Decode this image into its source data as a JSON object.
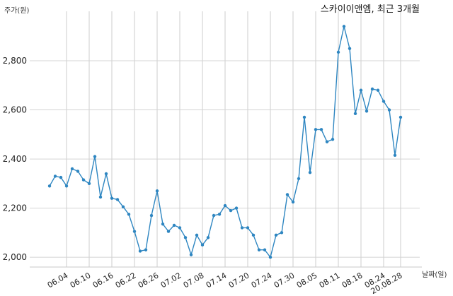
{
  "chart_data": {
    "type": "line",
    "title": "스카이이앤엠, 최근 3개월",
    "ylabel": "주가(원)",
    "xlabel": "날짜(일)",
    "ylim": [
      1960,
      2990
    ],
    "yticks": [
      2000,
      2200,
      2400,
      2600,
      2800
    ],
    "ytick_labels": [
      "2,000",
      "2,200",
      "2,400",
      "2,600",
      "2,800"
    ],
    "xticks": [
      {
        "index": 3,
        "label": "06.04"
      },
      {
        "index": 7,
        "label": "06.10"
      },
      {
        "index": 11,
        "label": "06.16"
      },
      {
        "index": 15,
        "label": "06.22"
      },
      {
        "index": 19,
        "label": "06.26"
      },
      {
        "index": 23,
        "label": "07.02"
      },
      {
        "index": 27,
        "label": "07.08"
      },
      {
        "index": 31,
        "label": "07.14"
      },
      {
        "index": 35,
        "label": "07.20"
      },
      {
        "index": 39,
        "label": "07.24"
      },
      {
        "index": 43,
        "label": "07.30"
      },
      {
        "index": 47,
        "label": "08.05"
      },
      {
        "index": 51,
        "label": "08.11"
      },
      {
        "index": 55,
        "label": "08.18"
      },
      {
        "index": 59,
        "label": "08.24"
      },
      {
        "index": 62,
        "label": "20.08.28"
      }
    ],
    "grid": true,
    "line_color": "#2e86c1",
    "series": [
      {
        "values": [
          2290,
          2330,
          2325,
          2290,
          2360,
          2350,
          2315,
          2300,
          2410,
          2245,
          2340,
          2240,
          2235,
          2205,
          2175,
          2105,
          2025,
          2030,
          2170,
          2270,
          2135,
          2105,
          2130,
          2120,
          2080,
          2010,
          2090,
          2050,
          2080,
          2170,
          2175,
          2210,
          2190,
          2200,
          2120,
          2120,
          2090,
          2030,
          2030,
          2000,
          2090,
          2100,
          2255,
          2225,
          2320,
          2570,
          2345,
          2520,
          2520,
          2470,
          2480,
          2835,
          2940,
          2850,
          2585,
          2680,
          2595,
          2685,
          2680,
          2635,
          2600,
          2415,
          2570
        ]
      }
    ]
  }
}
